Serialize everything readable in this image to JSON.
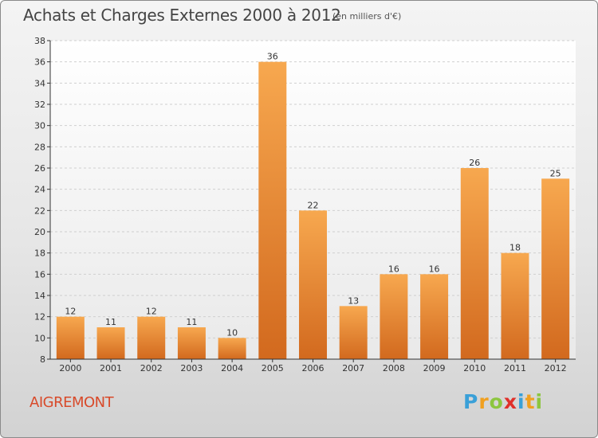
{
  "title": "Achats et Charges Externes 2000 à 2012",
  "unit_note": "(en milliers d'€)",
  "commune": "AIGREMONT",
  "logo": {
    "letters": [
      "P",
      "r",
      "o",
      "x",
      "i",
      "t",
      "i"
    ],
    "colors": [
      "#3aa0d8",
      "#f0a020",
      "#8cc63f",
      "#e0302a",
      "#3aa0d8",
      "#f0a020",
      "#8cc63f"
    ]
  },
  "colors": {
    "bar_top": "#f7a84f",
    "bar_bottom": "#d2691e",
    "axis": "#333333",
    "grid": "#cfcfcf"
  },
  "chart_data": {
    "type": "bar",
    "title": "Achats et Charges Externes 2000 à 2012",
    "categories": [
      "2000",
      "2001",
      "2002",
      "2003",
      "2004",
      "2005",
      "2006",
      "2007",
      "2008",
      "2009",
      "2010",
      "2011",
      "2012"
    ],
    "values": [
      12,
      11,
      12,
      11,
      10,
      36,
      22,
      13,
      16,
      16,
      26,
      18,
      25
    ],
    "ylim": [
      8,
      38
    ],
    "yticks": [
      8,
      10,
      12,
      14,
      16,
      18,
      20,
      22,
      24,
      26,
      28,
      30,
      32,
      34,
      36,
      38
    ],
    "xlabel": "",
    "ylabel": "",
    "grid": true,
    "data_labels": true
  }
}
